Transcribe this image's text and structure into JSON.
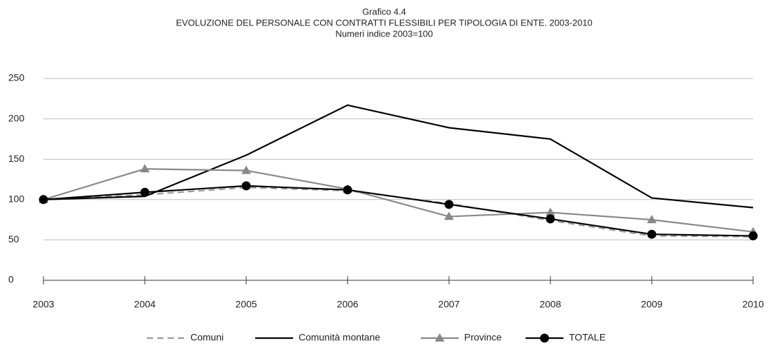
{
  "chart_data": {
    "type": "line",
    "title": "Grafico 4.4",
    "subtitle": "EVOLUZIONE DEL PERSONALE CON CONTRATTI FLESSIBILI PER TIPOLOGIA DI ENTE. 2003-2010",
    "note": "Numeri indice 2003=100",
    "categories": [
      "2003",
      "2004",
      "2005",
      "2006",
      "2007",
      "2008",
      "2009",
      "2010"
    ],
    "series": [
      {
        "name": "Comuni",
        "color": "#999999",
        "dash": true,
        "marker": null,
        "values": [
          100,
          106,
          115,
          111,
          95,
          74,
          55,
          54
        ]
      },
      {
        "name": "Comunità montane",
        "color": "#000000",
        "dash": false,
        "marker": null,
        "values": [
          100,
          104,
          155,
          217,
          189,
          175,
          102,
          90
        ]
      },
      {
        "name": "Province",
        "color": "#888888",
        "dash": false,
        "marker": "triangle",
        "values": [
          100,
          138,
          136,
          113,
          79,
          84,
          75,
          60
        ]
      },
      {
        "name": "TOTALE",
        "color": "#000000",
        "dash": false,
        "marker": "circle",
        "values": [
          100,
          109,
          117,
          112,
          94,
          76,
          57,
          55
        ]
      }
    ],
    "ylim": [
      0,
      250
    ],
    "yticks": [
      0,
      50,
      100,
      150,
      200,
      250
    ],
    "grid": true,
    "legend": "bottom"
  }
}
